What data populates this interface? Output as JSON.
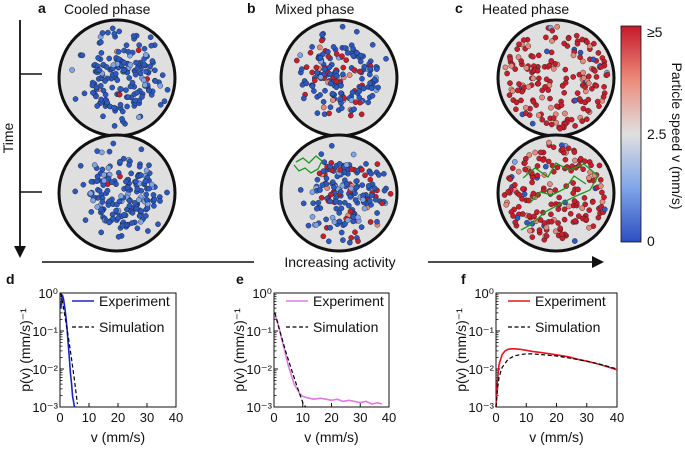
{
  "top": {
    "panels": [
      {
        "letter": "a",
        "title": "Cooled phase"
      },
      {
        "letter": "b",
        "title": "Mixed phase"
      },
      {
        "letter": "c",
        "title": "Heated phase"
      }
    ],
    "time_label": "Time",
    "activity_label": "Increasing activity",
    "colorbar": {
      "label": "Particle speed v (mm/s)",
      "ticks": [
        "≥5",
        "2.5",
        "0"
      ],
      "colors": [
        "#2b59c3",
        "#7fa5e8",
        "#dcdcdc",
        "#e88a7b",
        "#c81e2c"
      ]
    }
  },
  "chart_data": [
    {
      "panel": "d",
      "type": "line",
      "xlabel": "v (mm/s)",
      "ylabel": "p(v) (mm/s)⁻¹",
      "log_y": true,
      "xlim": [
        0,
        40
      ],
      "ylim": [
        0.001,
        1
      ],
      "x_ticks": [
        "0",
        "10",
        "20",
        "30",
        "40"
      ],
      "y_ticks": [
        "10⁰",
        "10⁻¹",
        "10⁻²",
        "10⁻³"
      ],
      "legend": [
        "Experiment",
        "Simulation"
      ],
      "series": [
        {
          "name": "Experiment",
          "color": "#1a23c9",
          "x": [
            0.3,
            0.8,
            1.2,
            1.6,
            2.0,
            2.4,
            2.8,
            3.2,
            3.6,
            4.0,
            4.3,
            4.6,
            5.0
          ],
          "y": [
            0.4,
            0.9,
            0.7,
            0.45,
            0.25,
            0.12,
            0.05,
            0.02,
            0.008,
            0.004,
            0.002,
            0.0015,
            0.001
          ]
        },
        {
          "name": "Simulation",
          "color": "#000000",
          "dashed": true,
          "x": [
            0.3,
            1.0,
            2.0,
            3.0,
            4.0,
            5.0,
            6.0
          ],
          "y": [
            1.0,
            0.5,
            0.18,
            0.06,
            0.018,
            0.005,
            0.0012
          ]
        }
      ]
    },
    {
      "panel": "e",
      "type": "line",
      "xlabel": "v (mm/s)",
      "ylabel": "p(v) (mm/s)⁻¹",
      "log_y": true,
      "xlim": [
        0,
        40
      ],
      "ylim": [
        0.001,
        1
      ],
      "x_ticks": [
        "0",
        "10",
        "20",
        "30",
        "40"
      ],
      "y_ticks": [
        "10⁰",
        "10⁻¹",
        "10⁻²",
        "10⁻³"
      ],
      "legend": [
        "Experiment",
        "Simulation"
      ],
      "series": [
        {
          "name": "Experiment",
          "color": "#e07ae0",
          "x": [
            0.3,
            1,
            2,
            3,
            4,
            5,
            6,
            7,
            8,
            9,
            10,
            12,
            14,
            16,
            18,
            20,
            22,
            24,
            26,
            28,
            30,
            32,
            34,
            36,
            37.5
          ],
          "y": [
            0.25,
            0.2,
            0.1,
            0.05,
            0.025,
            0.012,
            0.007,
            0.004,
            0.003,
            0.0022,
            0.0019,
            0.0017,
            0.0016,
            0.0017,
            0.0016,
            0.0015,
            0.0016,
            0.0014,
            0.0015,
            0.0014,
            0.0013,
            0.0014,
            0.0012,
            0.0013,
            0.0012
          ]
        },
        {
          "name": "Simulation",
          "color": "#000000",
          "dashed": true,
          "x": [
            0.3,
            2,
            4,
            6,
            8,
            10,
            11
          ],
          "y": [
            0.3,
            0.1,
            0.03,
            0.01,
            0.0035,
            0.0013,
            0.001
          ]
        }
      ]
    },
    {
      "panel": "f",
      "type": "line",
      "xlabel": "v (mm/s)",
      "ylabel": "p(v) (mm/s)⁻¹",
      "log_y": true,
      "xlim": [
        0,
        40
      ],
      "ylim": [
        0.001,
        1
      ],
      "x_ticks": [
        "0",
        "10",
        "20",
        "30",
        "40"
      ],
      "y_ticks": [
        "10⁰",
        "10⁻¹",
        "10⁻²",
        "10⁻³"
      ],
      "legend": [
        "Experiment",
        "Simulation"
      ],
      "series": [
        {
          "name": "Experiment",
          "color": "#e8141e",
          "x": [
            0,
            0.5,
            1,
            2,
            3,
            4,
            5,
            6,
            8,
            10,
            12,
            15,
            18,
            21,
            24,
            27,
            30,
            33,
            36,
            40
          ],
          "y": [
            0.001,
            0.005,
            0.013,
            0.024,
            0.03,
            0.033,
            0.034,
            0.034,
            0.033,
            0.031,
            0.029,
            0.027,
            0.025,
            0.023,
            0.021,
            0.018,
            0.016,
            0.014,
            0.012,
            0.0095
          ]
        },
        {
          "name": "Simulation",
          "color": "#000000",
          "dashed": true,
          "x": [
            0,
            0.5,
            1,
            2,
            4,
            6,
            8,
            10,
            12,
            15,
            20,
            25,
            30,
            35,
            40
          ],
          "y": [
            0.001,
            0.003,
            0.006,
            0.011,
            0.018,
            0.022,
            0.024,
            0.025,
            0.025,
            0.024,
            0.022,
            0.019,
            0.016,
            0.013,
            0.01
          ]
        }
      ]
    }
  ]
}
